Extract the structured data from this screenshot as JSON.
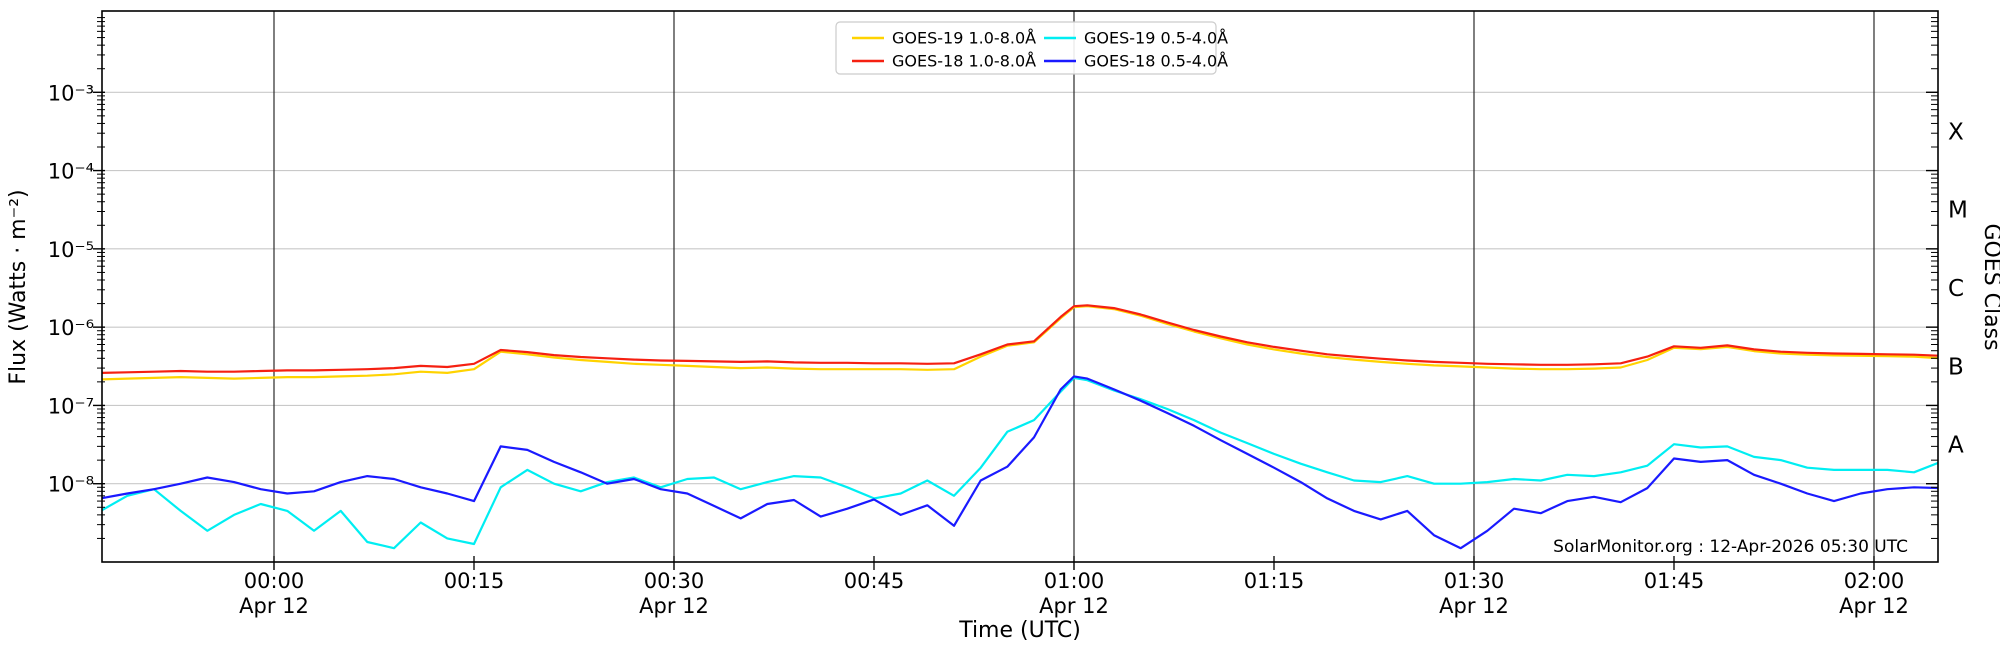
{
  "figure": {
    "kind": "GOES X-ray flux time-series plot",
    "background": "#ffffff"
  },
  "chart_data": {
    "type": "line",
    "title": "",
    "xlabel": "Time (UTC)",
    "ylabel": "Flux (Watts · m⁻²)",
    "ylabel_right": "GOES Class",
    "annotation": "SolarMonitor.org : 12-Apr-2026 05:30 UTC",
    "grid": "horizontal decade gridlines light gray; dark vertical lines every 30 min",
    "legend_position": "top-center, 2 columns",
    "x_axis": {
      "unit": "minutes relative to 00:00 Apr 12",
      "range_minutes": [
        -12.9,
        124.8
      ],
      "major_ticks": [
        {
          "min": 0,
          "label": "00:00",
          "sub": "Apr 12"
        },
        {
          "min": 15,
          "label": "00:15",
          "sub": ""
        },
        {
          "min": 30,
          "label": "00:30",
          "sub": "Apr 12"
        },
        {
          "min": 45,
          "label": "00:45",
          "sub": ""
        },
        {
          "min": 60,
          "label": "01:00",
          "sub": "Apr 12"
        },
        {
          "min": 75,
          "label": "01:15",
          "sub": ""
        },
        {
          "min": 90,
          "label": "01:30",
          "sub": "Apr 12"
        },
        {
          "min": 105,
          "label": "01:45",
          "sub": ""
        },
        {
          "min": 120,
          "label": "02:00",
          "sub": "Apr 12"
        }
      ],
      "dark_vertical_line_minutes": [
        0,
        30,
        60,
        90,
        120
      ]
    },
    "y_axis": {
      "scale": "log10",
      "range": [
        1e-09,
        0.01
      ],
      "ticks": [
        {
          "exp": -3,
          "label": "10⁻³"
        },
        {
          "exp": -4,
          "label": "10⁻⁴"
        },
        {
          "exp": -5,
          "label": "10⁻⁵"
        },
        {
          "exp": -6,
          "label": "10⁻⁶"
        },
        {
          "exp": -7,
          "label": "10⁻⁷"
        },
        {
          "exp": -8,
          "label": "10⁻⁸"
        }
      ]
    },
    "goes_class_labels": [
      {
        "label": "X",
        "center_exp": -3.5
      },
      {
        "label": "M",
        "center_exp": -4.5
      },
      {
        "label": "C",
        "center_exp": -5.5
      },
      {
        "label": "B",
        "center_exp": -6.5
      },
      {
        "label": "A",
        "center_exp": -7.5
      }
    ],
    "x_minutes": [
      -13,
      -11,
      -9,
      -7,
      -5,
      -3,
      -1,
      1,
      3,
      5,
      7,
      9,
      11,
      13,
      15,
      17,
      19,
      21,
      23,
      25,
      27,
      29,
      31,
      33,
      35,
      37,
      39,
      41,
      43,
      45,
      47,
      49,
      51,
      53,
      55,
      57,
      59,
      60,
      61,
      63,
      65,
      67,
      69,
      71,
      73,
      75,
      77,
      79,
      81,
      83,
      85,
      87,
      89,
      91,
      93,
      95,
      97,
      99,
      101,
      103,
      105,
      107,
      109,
      111,
      113,
      115,
      117,
      119,
      121,
      123,
      125
    ],
    "series": [
      {
        "name": "GOES-19 1.0-8.0Å",
        "color": "#ffd300",
        "values": [
          2.15e-07,
          2.2e-07,
          2.25e-07,
          2.3e-07,
          2.25e-07,
          2.2e-07,
          2.25e-07,
          2.3e-07,
          2.3e-07,
          2.35e-07,
          2.4e-07,
          2.5e-07,
          2.7e-07,
          2.6e-07,
          2.9e-07,
          4.85e-07,
          4.5e-07,
          4.1e-07,
          3.8e-07,
          3.6e-07,
          3.4e-07,
          3.3e-07,
          3.2e-07,
          3.1e-07,
          3e-07,
          3.05e-07,
          2.95e-07,
          2.9e-07,
          2.9e-07,
          2.9e-07,
          2.9e-07,
          2.85e-07,
          2.9e-07,
          4.2e-07,
          5.8e-07,
          6.4e-07,
          1.3e-06,
          1.8e-06,
          1.85e-06,
          1.7e-06,
          1.4e-06,
          1.1e-06,
          8.8e-07,
          7.2e-07,
          6e-07,
          5.2e-07,
          4.6e-07,
          4.15e-07,
          3.85e-07,
          3.6e-07,
          3.4e-07,
          3.25e-07,
          3.15e-07,
          3.05e-07,
          2.95e-07,
          2.9e-07,
          2.9e-07,
          2.95e-07,
          3.05e-07,
          3.8e-07,
          5.45e-07,
          5.25e-07,
          5.6e-07,
          4.95e-07,
          4.6e-07,
          4.45e-07,
          4.35e-07,
          4.3e-07,
          4.25e-07,
          4.2e-07,
          4e-07
        ]
      },
      {
        "name": "GOES-18 1.0-8.0Å",
        "color": "#f52011",
        "values": [
          2.6e-07,
          2.65e-07,
          2.7e-07,
          2.75e-07,
          2.7e-07,
          2.7e-07,
          2.75e-07,
          2.8e-07,
          2.8e-07,
          2.85e-07,
          2.9e-07,
          3e-07,
          3.2e-07,
          3.1e-07,
          3.4e-07,
          5.1e-07,
          4.8e-07,
          4.4e-07,
          4.15e-07,
          4e-07,
          3.85e-07,
          3.75e-07,
          3.7e-07,
          3.65e-07,
          3.6e-07,
          3.65e-07,
          3.55e-07,
          3.5e-07,
          3.5e-07,
          3.45e-07,
          3.45e-07,
          3.4e-07,
          3.45e-07,
          4.5e-07,
          6e-07,
          6.6e-07,
          1.35e-06,
          1.85e-06,
          1.9e-06,
          1.75e-06,
          1.45e-06,
          1.15e-06,
          9.2e-07,
          7.6e-07,
          6.4e-07,
          5.6e-07,
          5e-07,
          4.5e-07,
          4.2e-07,
          3.95e-07,
          3.75e-07,
          3.6e-07,
          3.5e-07,
          3.4e-07,
          3.35e-07,
          3.3e-07,
          3.3e-07,
          3.35e-07,
          3.45e-07,
          4.2e-07,
          5.7e-07,
          5.45e-07,
          5.85e-07,
          5.2e-07,
          4.85e-07,
          4.7e-07,
          4.6e-07,
          4.55e-07,
          4.5e-07,
          4.45e-07,
          4.3e-07
        ]
      },
      {
        "name": "GOES-19 0.5-4.0Å",
        "color": "#00eef2",
        "values": [
          4.5e-09,
          7e-09,
          8.5e-09,
          4.5e-09,
          2.5e-09,
          4e-09,
          5.5e-09,
          4.5e-09,
          2.5e-09,
          4.5e-09,
          1.8e-09,
          1.5e-09,
          3.2e-09,
          2e-09,
          1.7e-09,
          9e-09,
          1.5e-08,
          1e-08,
          8e-09,
          1.05e-08,
          1.2e-08,
          9e-09,
          1.15e-08,
          1.2e-08,
          8.5e-09,
          1.05e-08,
          1.25e-08,
          1.2e-08,
          9e-09,
          6.5e-09,
          7.5e-09,
          1.1e-08,
          7e-09,
          1.6e-08,
          4.6e-08,
          6.5e-08,
          1.5e-07,
          2.25e-07,
          2.1e-07,
          1.55e-07,
          1.2e-07,
          9e-08,
          6.5e-08,
          4.5e-08,
          3.3e-08,
          2.4e-08,
          1.8e-08,
          1.4e-08,
          1.1e-08,
          1.05e-08,
          1.25e-08,
          1e-08,
          1e-08,
          1.05e-08,
          1.15e-08,
          1.1e-08,
          1.3e-08,
          1.25e-08,
          1.4e-08,
          1.7e-08,
          3.2e-08,
          2.9e-08,
          3e-08,
          2.2e-08,
          2e-08,
          1.6e-08,
          1.5e-08,
          1.5e-08,
          1.5e-08,
          1.4e-08,
          1.9e-08
        ]
      },
      {
        "name": "GOES-18 0.5-4.0Å",
        "color": "#1a1aff",
        "values": [
          6.5e-09,
          7.5e-09,
          8.5e-09,
          1e-08,
          1.2e-08,
          1.05e-08,
          8.5e-09,
          7.5e-09,
          8e-09,
          1.05e-08,
          1.25e-08,
          1.15e-08,
          9e-09,
          7.5e-09,
          6e-09,
          3e-08,
          2.7e-08,
          1.9e-08,
          1.4e-08,
          1e-08,
          1.15e-08,
          8.5e-09,
          7.5e-09,
          5.2e-09,
          3.6e-09,
          5.5e-09,
          6.2e-09,
          3.8e-09,
          4.8e-09,
          6.3e-09,
          4e-09,
          5.3e-09,
          2.9e-09,
          1.1e-08,
          1.65e-08,
          3.9e-08,
          1.6e-07,
          2.35e-07,
          2.2e-07,
          1.6e-07,
          1.15e-07,
          8e-08,
          5.5e-08,
          3.6e-08,
          2.4e-08,
          1.6e-08,
          1.05e-08,
          6.5e-09,
          4.5e-09,
          3.5e-09,
          4.5e-09,
          2.2e-09,
          1.5e-09,
          2.5e-09,
          4.8e-09,
          4.2e-09,
          6e-09,
          6.8e-09,
          5.8e-09,
          8.8e-09,
          2.1e-08,
          1.9e-08,
          2e-08,
          1.3e-08,
          1e-08,
          7.5e-09,
          6e-09,
          7.5e-09,
          8.5e-09,
          9e-09,
          8.8e-09
        ]
      }
    ],
    "legend_entries": [
      {
        "label": "GOES-19 1.0-8.0Å",
        "color": "#ffd300"
      },
      {
        "label": "GOES-18 1.0-8.0Å",
        "color": "#f52011"
      },
      {
        "label": "GOES-19 0.5-4.0Å",
        "color": "#00eef2"
      },
      {
        "label": "GOES-18 0.5-4.0Å",
        "color": "#1a1aff"
      }
    ]
  }
}
